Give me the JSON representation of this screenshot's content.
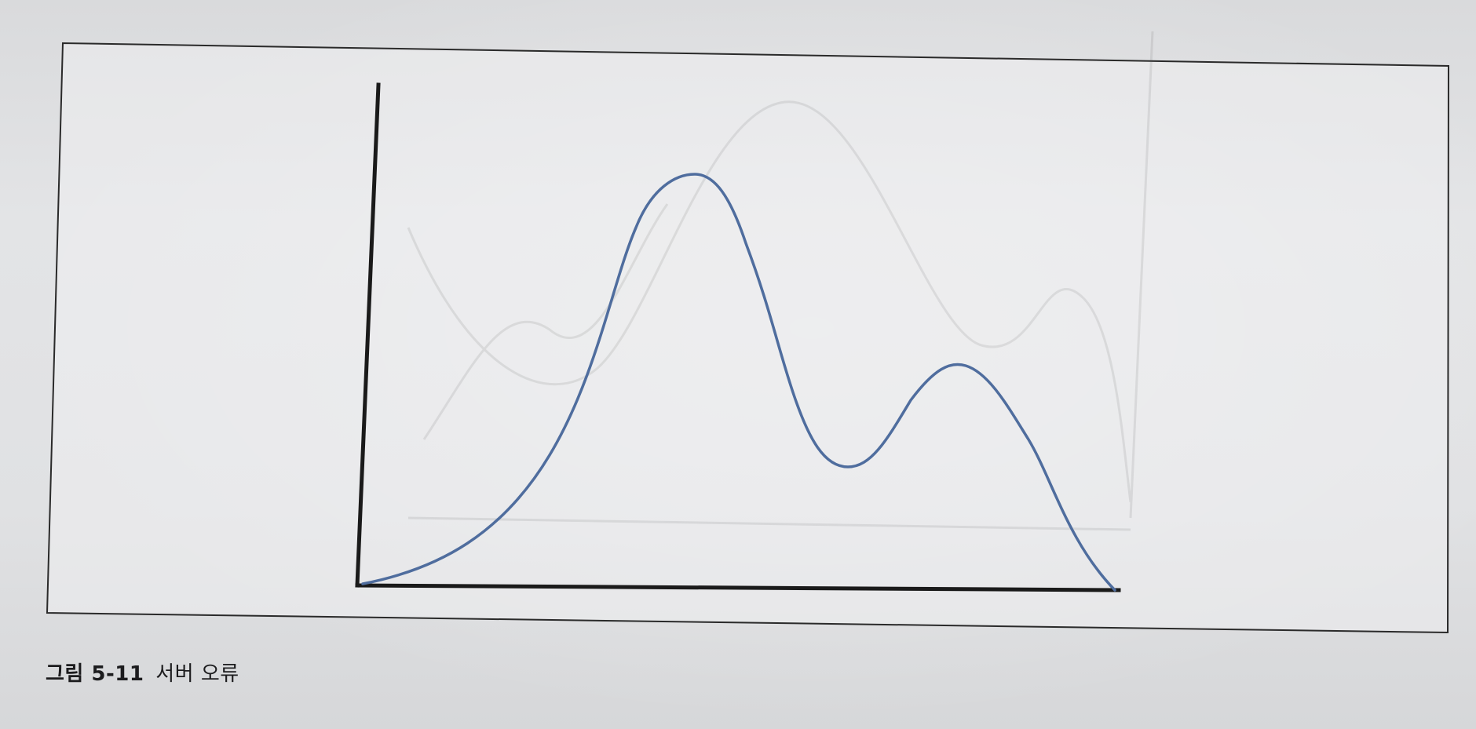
{
  "figure": {
    "caption_label": "그림 5-11",
    "caption_title": "서버 오류",
    "colors": {
      "curve": "#4f6d9e",
      "axis": "#1a1a1a",
      "frame": "#2a2a2a"
    }
  }
}
